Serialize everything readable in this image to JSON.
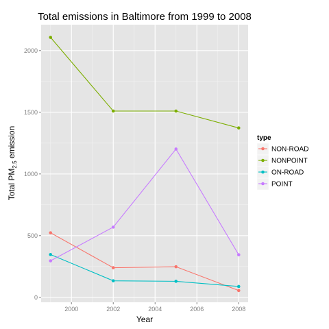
{
  "chart_data": {
    "type": "line",
    "title": "Total emissions in Baltimore from 1999 to 2008",
    "xlabel": "Year",
    "ylabel": {
      "prefix": "Total PM",
      "subscript": "2.5",
      "suffix": " emission"
    },
    "xlim": [
      1998.55,
      2008.45
    ],
    "ylim": [
      -40,
      2210
    ],
    "x_ticks": [
      2000,
      2002,
      2004,
      2006,
      2008
    ],
    "y_ticks": [
      0,
      500,
      1000,
      1500,
      2000
    ],
    "grid": true,
    "background": "#e5e5e5",
    "legend_title": "type",
    "legend_position": "right",
    "x": [
      1999,
      2002,
      2005,
      2008
    ],
    "series": [
      {
        "name": "NON-ROAD",
        "color": "#f8766d",
        "values": [
          523,
          240,
          248,
          55
        ]
      },
      {
        "name": "NONPOINT",
        "color": "#7cae00",
        "values": [
          2107,
          1510,
          1510,
          1373
        ]
      },
      {
        "name": "ON-ROAD",
        "color": "#00bfc4",
        "values": [
          347,
          134,
          130,
          88
        ]
      },
      {
        "name": "POINT",
        "color": "#c77cff",
        "values": [
          296,
          569,
          1202,
          345
        ]
      }
    ]
  }
}
